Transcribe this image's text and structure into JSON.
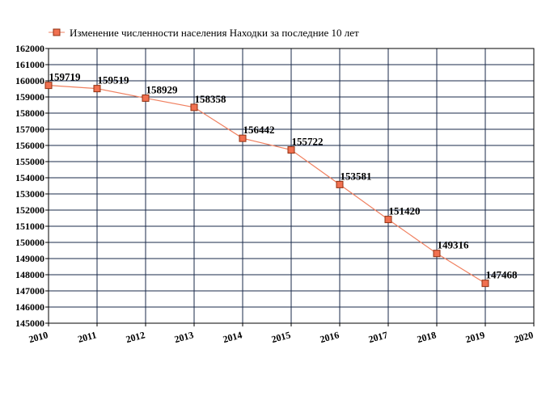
{
  "chart_data": {
    "type": "line",
    "legend": "Изменение численности населения Находки за последние 10 лет",
    "legend_position": "top-left",
    "x": [
      "2010",
      "2011",
      "2012",
      "2013",
      "2014",
      "2015",
      "2016",
      "2017",
      "2018",
      "2019"
    ],
    "x_ticks": [
      "2010",
      "2011",
      "2012",
      "2013",
      "2014",
      "2015",
      "2016",
      "2017",
      "2018",
      "2019",
      "2020"
    ],
    "values": [
      159719,
      159519,
      158929,
      158358,
      156442,
      155722,
      153581,
      151420,
      149316,
      147468
    ],
    "labels": [
      "159719",
      "159519",
      "158929",
      "158358",
      "156442",
      "155722",
      "153581",
      "151420",
      "149316",
      "147468"
    ],
    "y_ticks": [
      "145000",
      "146000",
      "147000",
      "148000",
      "149000",
      "150000",
      "151000",
      "152000",
      "153000",
      "154000",
      "155000",
      "156000",
      "157000",
      "158000",
      "159000",
      "160000",
      "161000",
      "162000"
    ],
    "ylim": [
      145000,
      162000
    ],
    "xlim": [
      2010,
      2020
    ],
    "grid": true,
    "colors": {
      "line": "#f08060",
      "marker_fill": "#f07050",
      "marker_stroke": "#903010",
      "grid": "#1a2a4a",
      "axis": "#000000"
    }
  }
}
